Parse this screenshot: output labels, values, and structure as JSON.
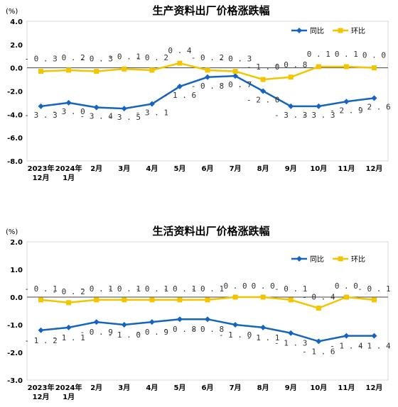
{
  "colors": {
    "yoy": "#1565C0",
    "mom": "#F2C500",
    "zero_line": "#444444"
  },
  "chart_data": [
    {
      "type": "line",
      "title": "生产资料出厂价格涨跌幅",
      "unit": "(%)",
      "ylim": [
        -8.0,
        4.0
      ],
      "yticks": [
        "4.0",
        "2.0",
        "0.0",
        "-2.0",
        "-4.0",
        "-6.0",
        "-8.0"
      ],
      "ytick_values": [
        4,
        2,
        0,
        -2,
        -4,
        -6,
        -8
      ],
      "categories": [
        [
          "2023年",
          "12月"
        ],
        [
          "2024年",
          "1月"
        ],
        [
          "2月"
        ],
        [
          "3月"
        ],
        [
          "4月"
        ],
        [
          "5月"
        ],
        [
          "6月"
        ],
        [
          "7月"
        ],
        [
          "8月"
        ],
        [
          "9月"
        ],
        [
          "10月"
        ],
        [
          "11月"
        ],
        [
          "12月"
        ]
      ],
      "legend_position": "top-right",
      "grid": false,
      "series": [
        {
          "name": "同比",
          "marker": "diamond",
          "values": [
            -3.3,
            -3.0,
            -3.4,
            -3.5,
            -3.1,
            -1.6,
            -0.8,
            -0.7,
            -2.0,
            -3.3,
            -3.3,
            -2.9,
            -2.6
          ],
          "labels": [
            "-3.3",
            "-3.0",
            "-3.4",
            "-3.5",
            "-3.1",
            "-1.6",
            "-0.8",
            "-0.7",
            "-2.0",
            "-3.3",
            "-3.3",
            "-2.9",
            "-2.6"
          ]
        },
        {
          "name": "环比",
          "marker": "square",
          "values": [
            -0.3,
            -0.2,
            -0.3,
            -0.1,
            -0.2,
            0.4,
            -0.2,
            -0.3,
            -1.0,
            -0.8,
            0.1,
            0.1,
            0.0
          ],
          "labels": [
            "-0.3",
            "-0.2",
            "-0.3",
            "-0.1",
            "-0.2",
            "0.4",
            "-0.2",
            "-0.3",
            "-1.0",
            "-0.8",
            "0.1",
            "0.1",
            "0.0"
          ]
        }
      ]
    },
    {
      "type": "line",
      "title": "生活资料出厂价格涨跌幅",
      "unit": "(%)",
      "ylim": [
        -3.0,
        2.0
      ],
      "yticks": [
        "2.0",
        "1.0",
        "0.0",
        "-1.0",
        "-2.0",
        "-3.0"
      ],
      "ytick_values": [
        2,
        1,
        0,
        -1,
        -2,
        -3
      ],
      "categories": [
        [
          "2023年",
          "12月"
        ],
        [
          "2024年",
          "1月"
        ],
        [
          "2月"
        ],
        [
          "3月"
        ],
        [
          "4月"
        ],
        [
          "5月"
        ],
        [
          "6月"
        ],
        [
          "7月"
        ],
        [
          "8月"
        ],
        [
          "9月"
        ],
        [
          "10月"
        ],
        [
          "11月"
        ],
        [
          "12月"
        ]
      ],
      "legend_position": "top-right",
      "grid": false,
      "series": [
        {
          "name": "同比",
          "marker": "diamond",
          "values": [
            -1.2,
            -1.1,
            -0.9,
            -1.0,
            -0.9,
            -0.8,
            -0.8,
            -1.0,
            -1.1,
            -1.3,
            -1.6,
            -1.4,
            -1.4
          ],
          "labels": [
            "-1.2",
            "-1.1",
            "-0.9",
            "-1.0",
            "-0.9",
            "-0.8",
            "-0.8",
            "-1.0",
            "-1.1",
            "-1.3",
            "-1.6",
            "-1.4",
            "-1.4"
          ]
        },
        {
          "name": "环比",
          "marker": "square",
          "values": [
            -0.1,
            -0.2,
            -0.1,
            -0.1,
            -0.1,
            -0.1,
            -0.1,
            0.0,
            0.0,
            -0.1,
            -0.4,
            0.0,
            -0.1
          ],
          "labels": [
            "-0.1",
            "-0.2",
            "-0.1",
            "-0.1",
            "-0.1",
            "-0.1",
            "-0.1",
            "0.0",
            "0.0",
            "-0.1",
            "-0.4",
            "0.0",
            "-0.1"
          ]
        }
      ]
    }
  ]
}
